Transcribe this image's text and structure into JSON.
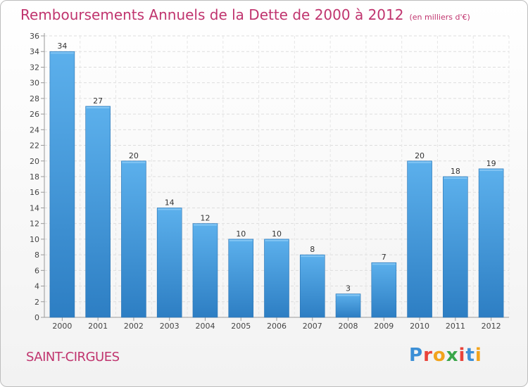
{
  "header": {
    "title": "Remboursements Annuels de la Dette de 2000 à 2012",
    "unit": "(en milliers d'€)"
  },
  "footer": {
    "commune": "SAINT-CIRGUES",
    "logo_letters": [
      "P",
      "r",
      "o",
      "x",
      "i",
      "t",
      "i"
    ],
    "logo_colors": [
      "#3c8fd6",
      "#e9433a",
      "#f2a31b",
      "#3aa64a",
      "#e9433a",
      "#3c8fd6",
      "#f2a31b"
    ]
  },
  "colors": {
    "bar": "#4fa3e3",
    "bar_dark": "#2e7fc4",
    "title": "#c0346e"
  },
  "chart_data": {
    "type": "bar",
    "categories": [
      "2000",
      "2001",
      "2002",
      "2003",
      "2004",
      "2005",
      "2006",
      "2007",
      "2008",
      "2009",
      "2010",
      "2011",
      "2012"
    ],
    "values": [
      34,
      27,
      20,
      14,
      12,
      10,
      10,
      8,
      3,
      7,
      20,
      18,
      19
    ],
    "ylim": [
      0,
      36
    ],
    "ytick_step": 2,
    "grid": true,
    "data_labels": true
  }
}
